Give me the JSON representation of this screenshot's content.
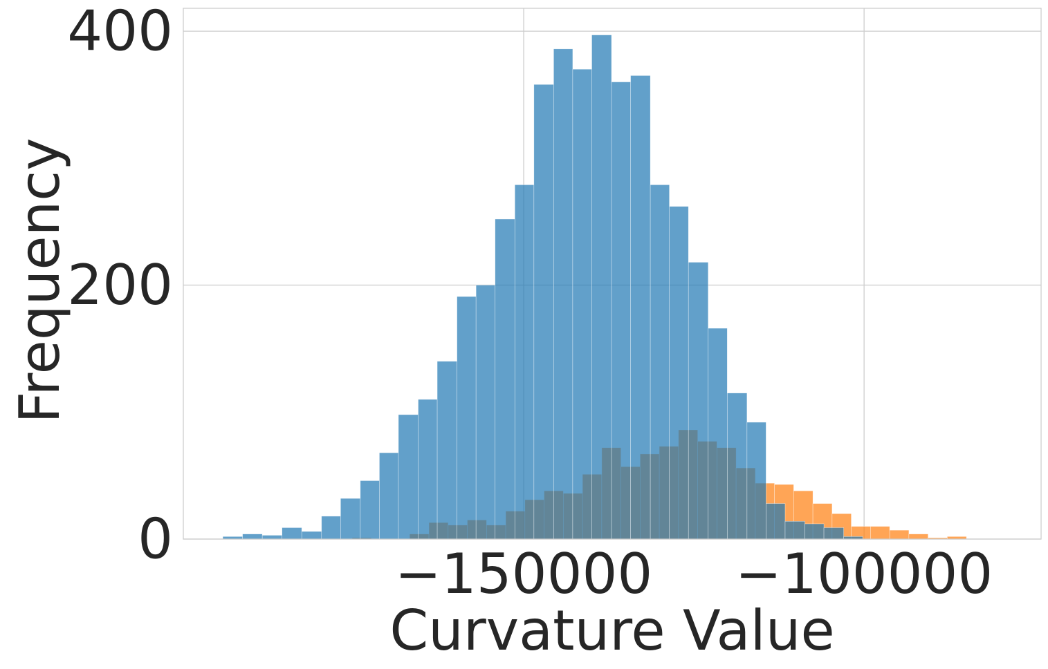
{
  "chart_data": {
    "type": "bar",
    "subtype": "overlapping-histogram",
    "title": "",
    "xlabel": "Curvature Value",
    "ylabel": "Frequency",
    "xlim": [
      -200000,
      -74000
    ],
    "ylim": [
      0,
      418
    ],
    "grid": true,
    "legend": "none",
    "x_ticks": [
      {
        "value": -150000,
        "label": "−150000"
      },
      {
        "value": -100000,
        "label": "−100000"
      }
    ],
    "y_ticks": [
      {
        "value": 0,
        "label": "0"
      },
      {
        "value": 200,
        "label": "200"
      },
      {
        "value": 400,
        "label": "400"
      }
    ],
    "series": [
      {
        "color": "#ff7f0e",
        "opacity": 0.7,
        "bins": [
          {
            "x0": -175200,
            "x1": -172380,
            "count": 1
          },
          {
            "x0": -166750,
            "x1": -163920,
            "count": 4
          },
          {
            "x0": -163920,
            "x1": -161100,
            "count": 13
          },
          {
            "x0": -161100,
            "x1": -158280,
            "count": 11
          },
          {
            "x0": -158280,
            "x1": -155460,
            "count": 15
          },
          {
            "x0": -155460,
            "x1": -152640,
            "count": 11
          },
          {
            "x0": -152640,
            "x1": -149820,
            "count": 22
          },
          {
            "x0": -149820,
            "x1": -147000,
            "count": 31
          },
          {
            "x0": -147000,
            "x1": -144180,
            "count": 38
          },
          {
            "x0": -144180,
            "x1": -141360,
            "count": 36
          },
          {
            "x0": -141360,
            "x1": -138540,
            "count": 51
          },
          {
            "x0": -138540,
            "x1": -135720,
            "count": 72
          },
          {
            "x0": -135720,
            "x1": -132900,
            "count": 57
          },
          {
            "x0": -132900,
            "x1": -130080,
            "count": 67
          },
          {
            "x0": -130080,
            "x1": -127260,
            "count": 73
          },
          {
            "x0": -127260,
            "x1": -124440,
            "count": 86
          },
          {
            "x0": -124440,
            "x1": -121620,
            "count": 77
          },
          {
            "x0": -121620,
            "x1": -118800,
            "count": 72
          },
          {
            "x0": -118800,
            "x1": -115980,
            "count": 56
          },
          {
            "x0": -115980,
            "x1": -113160,
            "count": 44
          },
          {
            "x0": -113160,
            "x1": -110340,
            "count": 43
          },
          {
            "x0": -110340,
            "x1": -107520,
            "count": 38
          },
          {
            "x0": -107520,
            "x1": -104700,
            "count": 28
          },
          {
            "x0": -104700,
            "x1": -101880,
            "count": 20
          },
          {
            "x0": -101880,
            "x1": -99060,
            "count": 10
          },
          {
            "x0": -99060,
            "x1": -96240,
            "count": 10
          },
          {
            "x0": -96240,
            "x1": -93420,
            "count": 7
          },
          {
            "x0": -93420,
            "x1": -90600,
            "count": 4
          },
          {
            "x0": -90600,
            "x1": -87780,
            "count": 1
          },
          {
            "x0": -87780,
            "x1": -84960,
            "count": 2
          }
        ]
      },
      {
        "color": "#1f77b4",
        "opacity": 0.7,
        "bins": [
          {
            "x0": -194200,
            "x1": -191300,
            "count": 2
          },
          {
            "x0": -191300,
            "x1": -188400,
            "count": 4
          },
          {
            "x0": -188400,
            "x1": -185500,
            "count": 3
          },
          {
            "x0": -185500,
            "x1": -182600,
            "count": 9
          },
          {
            "x0": -182600,
            "x1": -179700,
            "count": 6
          },
          {
            "x0": -179700,
            "x1": -176900,
            "count": 18
          },
          {
            "x0": -176900,
            "x1": -174000,
            "count": 32
          },
          {
            "x0": -174000,
            "x1": -171200,
            "count": 46
          },
          {
            "x0": -171200,
            "x1": -168400,
            "count": 68
          },
          {
            "x0": -168400,
            "x1": -165500,
            "count": 98
          },
          {
            "x0": -165500,
            "x1": -162700,
            "count": 110
          },
          {
            "x0": -162700,
            "x1": -159800,
            "count": 140
          },
          {
            "x0": -159800,
            "x1": -157000,
            "count": 191
          },
          {
            "x0": -157000,
            "x1": -154200,
            "count": 200
          },
          {
            "x0": -154200,
            "x1": -151300,
            "count": 252
          },
          {
            "x0": -151300,
            "x1": -148500,
            "count": 279
          },
          {
            "x0": -148500,
            "x1": -145600,
            "count": 358
          },
          {
            "x0": -145600,
            "x1": -142800,
            "count": 386
          },
          {
            "x0": -142800,
            "x1": -140000,
            "count": 370
          },
          {
            "x0": -140000,
            "x1": -137100,
            "count": 397
          },
          {
            "x0": -137100,
            "x1": -134300,
            "count": 360
          },
          {
            "x0": -134300,
            "x1": -131400,
            "count": 365
          },
          {
            "x0": -131400,
            "x1": -128600,
            "count": 279
          },
          {
            "x0": -128600,
            "x1": -125800,
            "count": 262
          },
          {
            "x0": -125800,
            "x1": -122900,
            "count": 218
          },
          {
            "x0": -122900,
            "x1": -120100,
            "count": 166
          },
          {
            "x0": -120100,
            "x1": -117200,
            "count": 115
          },
          {
            "x0": -117200,
            "x1": -114400,
            "count": 92
          },
          {
            "x0": -114400,
            "x1": -111600,
            "count": 28
          },
          {
            "x0": -111600,
            "x1": -108700,
            "count": 14
          },
          {
            "x0": -108700,
            "x1": -105900,
            "count": 12
          },
          {
            "x0": -105900,
            "x1": -103000,
            "count": 9
          },
          {
            "x0": -103000,
            "x1": -100200,
            "count": 2
          }
        ]
      }
    ]
  }
}
